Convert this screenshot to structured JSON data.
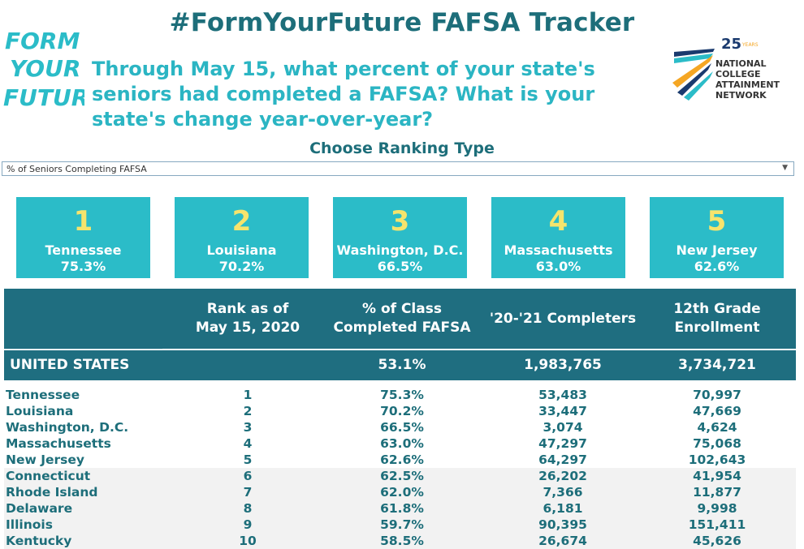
{
  "header": {
    "title": "#FormYourFuture FAFSA Tracker",
    "question": "Through May 15, what percent of your state's seniors had completed a FAFSA? What is your state's change year-over-year?"
  },
  "logos": {
    "left": {
      "line1": "FORM",
      "line2": "YOUR",
      "line3": "FUTURE"
    },
    "right": {
      "anniversary": "25",
      "years": "YEARS",
      "line1": "NATIONAL",
      "line2": "COLLEGE",
      "line3": "ATTAINMENT",
      "line4": "NETWORK"
    }
  },
  "ranking": {
    "label": "Choose Ranking Type",
    "selected": "% of Seniors Completing FAFSA"
  },
  "top5": [
    {
      "rank": "1",
      "state": "Tennessee",
      "pct": "75.3%"
    },
    {
      "rank": "2",
      "state": "Louisiana",
      "pct": "70.2%"
    },
    {
      "rank": "3",
      "state": "Washington, D.C.",
      "pct": "66.5%"
    },
    {
      "rank": "4",
      "state": "Massachusetts",
      "pct": "63.0%"
    },
    {
      "rank": "5",
      "state": "New Jersey",
      "pct": "62.6%"
    }
  ],
  "table": {
    "headers": {
      "rank_line1": "Rank as of",
      "rank_line2": "May 15, 2020",
      "pct_line1": "% of Class",
      "pct_line2": "Completed FAFSA",
      "completers": "'20-'21 Completers",
      "enroll_line1": "12th Grade",
      "enroll_line2": "Enrollment"
    },
    "us": {
      "name": "UNITED STATES",
      "pct": "53.1%",
      "completers": "1,983,765",
      "enrollment": "3,734,721"
    },
    "rows": [
      {
        "name": "Tennessee",
        "rank": "1",
        "pct": "75.3%",
        "completers": "53,483",
        "enrollment": "70,997"
      },
      {
        "name": "Louisiana",
        "rank": "2",
        "pct": "70.2%",
        "completers": "33,447",
        "enrollment": "47,669"
      },
      {
        "name": "Washington, D.C.",
        "rank": "3",
        "pct": "66.5%",
        "completers": "3,074",
        "enrollment": "4,624"
      },
      {
        "name": "Massachusetts",
        "rank": "4",
        "pct": "63.0%",
        "completers": "47,297",
        "enrollment": "75,068"
      },
      {
        "name": "New Jersey",
        "rank": "5",
        "pct": "62.6%",
        "completers": "64,297",
        "enrollment": "102,643"
      },
      {
        "name": "Connecticut",
        "rank": "6",
        "pct": "62.5%",
        "completers": "26,202",
        "enrollment": "41,954"
      },
      {
        "name": "Rhode Island",
        "rank": "7",
        "pct": "62.0%",
        "completers": "7,366",
        "enrollment": "11,877"
      },
      {
        "name": "Delaware",
        "rank": "8",
        "pct": "61.8%",
        "completers": "6,181",
        "enrollment": "9,998"
      },
      {
        "name": "Illinois",
        "rank": "9",
        "pct": "59.7%",
        "completers": "90,395",
        "enrollment": "151,411"
      },
      {
        "name": "Kentucky",
        "rank": "10",
        "pct": "58.5%",
        "completers": "26,674",
        "enrollment": "45,626"
      }
    ]
  },
  "colors": {
    "title": "#1d6e7a",
    "question": "#2bb5c3",
    "card": "#2bbcc8",
    "rank_number": "#f6e46c",
    "table_header": "#1f6e80",
    "alt_row": "#f2f2f2"
  }
}
